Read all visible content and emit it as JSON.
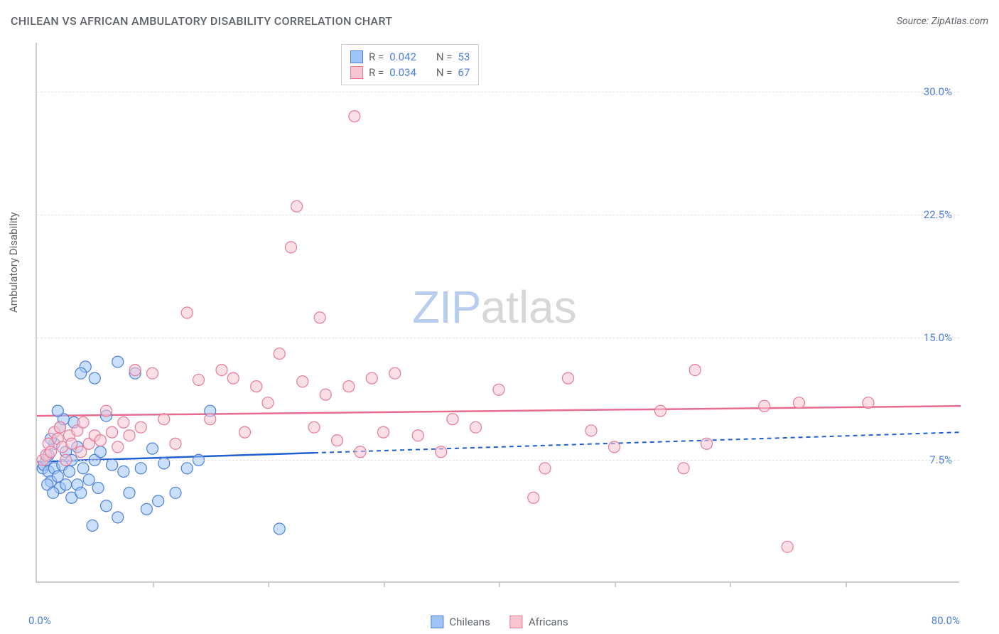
{
  "title": "CHILEAN VS AFRICAN AMBULATORY DISABILITY CORRELATION CHART",
  "source": "Source: ZipAtlas.com",
  "ylabel": "Ambulatory Disability",
  "watermark": {
    "part1": "ZIP",
    "part2": "atlas"
  },
  "chart": {
    "type": "scatter",
    "background_color": "#ffffff",
    "grid_color": "#e0e0e0",
    "axis_color": "#cccccc",
    "tick_label_color": "#4d7fd8",
    "axis_label_color": "#5f6368",
    "title_fontsize": 16,
    "label_fontsize": 15,
    "xlim": [
      0,
      80
    ],
    "ylim": [
      0,
      33
    ],
    "yticks": [
      {
        "value": 7.5,
        "label": "7.5%"
      },
      {
        "value": 15.0,
        "label": "15.0%"
      },
      {
        "value": 22.5,
        "label": "22.5%"
      },
      {
        "value": 30.0,
        "label": "30.0%"
      }
    ],
    "xticks_values": [
      10,
      20,
      30,
      40,
      50,
      60,
      70
    ],
    "xmin_label": "0.0%",
    "xmax_label": "80.0%",
    "marker_radius": 8,
    "marker_opacity": 0.55,
    "series": [
      {
        "name": "Chileans",
        "fill": "#9fc5f8",
        "stroke": "#4d7fd8",
        "line_color": "#1f5fd0",
        "r_value": "0.042",
        "n_value": "53",
        "trend": {
          "x1": 0,
          "y1": 7.4,
          "x2": 80,
          "y2": 9.2,
          "solid_until_x": 24
        },
        "points": [
          [
            0.5,
            7.0
          ],
          [
            0.6,
            7.2
          ],
          [
            0.8,
            7.5
          ],
          [
            1.0,
            6.8
          ],
          [
            1.0,
            7.8
          ],
          [
            1.2,
            6.2
          ],
          [
            1.5,
            8.5
          ],
          [
            1.5,
            7.0
          ],
          [
            1.8,
            6.5
          ],
          [
            2.0,
            5.8
          ],
          [
            2.0,
            9.5
          ],
          [
            2.2,
            7.2
          ],
          [
            2.5,
            8.0
          ],
          [
            2.5,
            6.0
          ],
          [
            2.8,
            6.8
          ],
          [
            3.0,
            7.5
          ],
          [
            3.0,
            5.2
          ],
          [
            3.2,
            9.8
          ],
          [
            3.5,
            6.0
          ],
          [
            3.5,
            8.3
          ],
          [
            3.8,
            5.5
          ],
          [
            4.0,
            7.0
          ],
          [
            4.2,
            13.2
          ],
          [
            4.5,
            6.3
          ],
          [
            4.8,
            3.5
          ],
          [
            5.0,
            7.5
          ],
          [
            5.0,
            12.5
          ],
          [
            5.3,
            5.8
          ],
          [
            5.5,
            8.0
          ],
          [
            6.0,
            4.7
          ],
          [
            6.0,
            10.2
          ],
          [
            6.5,
            7.2
          ],
          [
            7.0,
            4.0
          ],
          [
            7.0,
            13.5
          ],
          [
            7.5,
            6.8
          ],
          [
            8.0,
            5.5
          ],
          [
            8.5,
            12.8
          ],
          [
            9.0,
            7.0
          ],
          [
            9.5,
            4.5
          ],
          [
            10.0,
            8.2
          ],
          [
            10.5,
            5.0
          ],
          [
            11.0,
            7.3
          ],
          [
            12.0,
            5.5
          ],
          [
            13.0,
            7.0
          ],
          [
            14.0,
            7.5
          ],
          [
            15.0,
            10.5
          ],
          [
            21.0,
            3.3
          ],
          [
            3.8,
            12.8
          ],
          [
            2.3,
            10.0
          ],
          [
            1.8,
            10.5
          ],
          [
            1.2,
            8.8
          ],
          [
            0.9,
            6.0
          ],
          [
            1.4,
            5.5
          ]
        ]
      },
      {
        "name": "Africans",
        "fill": "#f8c5d1",
        "stroke": "#e67a98",
        "line_color": "#e86b8f",
        "r_value": "0.034",
        "n_value": "67",
        "trend": {
          "x1": 0,
          "y1": 10.2,
          "x2": 80,
          "y2": 10.8,
          "solid_until_x": 80
        },
        "points": [
          [
            0.5,
            7.5
          ],
          [
            0.8,
            7.8
          ],
          [
            1.0,
            8.5
          ],
          [
            1.2,
            8.0
          ],
          [
            1.5,
            9.2
          ],
          [
            1.8,
            8.8
          ],
          [
            2.0,
            9.5
          ],
          [
            2.2,
            8.3
          ],
          [
            2.5,
            7.5
          ],
          [
            2.8,
            9.0
          ],
          [
            3.0,
            8.5
          ],
          [
            3.5,
            9.3
          ],
          [
            3.8,
            8.0
          ],
          [
            4.0,
            9.8
          ],
          [
            4.5,
            8.5
          ],
          [
            5.0,
            9.0
          ],
          [
            5.5,
            8.7
          ],
          [
            6.0,
            10.5
          ],
          [
            6.5,
            9.2
          ],
          [
            7.0,
            8.3
          ],
          [
            7.5,
            9.8
          ],
          [
            8.0,
            9.0
          ],
          [
            8.5,
            13.0
          ],
          [
            9.0,
            9.5
          ],
          [
            10.0,
            12.8
          ],
          [
            11.0,
            10.0
          ],
          [
            12.0,
            8.5
          ],
          [
            13.0,
            16.5
          ],
          [
            14.0,
            12.4
          ],
          [
            15.0,
            10.0
          ],
          [
            16.0,
            13.0
          ],
          [
            17.0,
            12.5
          ],
          [
            18.0,
            9.2
          ],
          [
            19.0,
            12.0
          ],
          [
            20.0,
            11.0
          ],
          [
            21.0,
            14.0
          ],
          [
            22.0,
            20.5
          ],
          [
            22.5,
            23.0
          ],
          [
            23.0,
            12.3
          ],
          [
            24.0,
            9.5
          ],
          [
            24.5,
            16.2
          ],
          [
            25.0,
            11.5
          ],
          [
            26.0,
            8.7
          ],
          [
            27.0,
            12.0
          ],
          [
            27.5,
            28.5
          ],
          [
            28.0,
            8.0
          ],
          [
            29.0,
            12.5
          ],
          [
            30.0,
            9.2
          ],
          [
            31.0,
            12.8
          ],
          [
            33.0,
            9.0
          ],
          [
            35.0,
            8.0
          ],
          [
            36.0,
            10.0
          ],
          [
            38.0,
            9.5
          ],
          [
            40.0,
            11.8
          ],
          [
            43.0,
            5.2
          ],
          [
            44.0,
            7.0
          ],
          [
            46.0,
            12.5
          ],
          [
            48.0,
            9.3
          ],
          [
            50.0,
            8.3
          ],
          [
            54.0,
            10.5
          ],
          [
            56.0,
            7.0
          ],
          [
            58.0,
            8.5
          ],
          [
            63.0,
            10.8
          ],
          [
            65.0,
            2.2
          ],
          [
            66.0,
            11.0
          ],
          [
            57.0,
            13.0
          ],
          [
            72.0,
            11.0
          ]
        ]
      }
    ]
  },
  "legend": {
    "series1_label": "Chileans",
    "series2_label": "Africans"
  },
  "stats_box": {
    "r_label": "R =",
    "n_label": "N ="
  }
}
